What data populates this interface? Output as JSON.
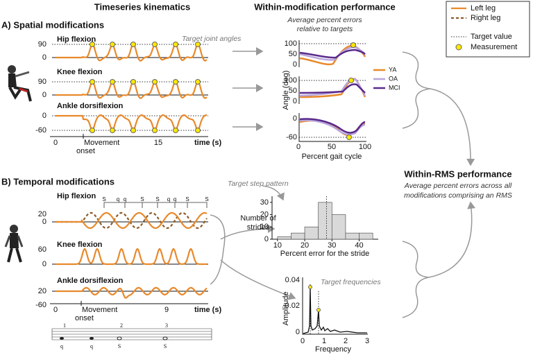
{
  "headers": [
    "Timeseries kinematics",
    "Within-modification performance"
  ],
  "subtitle": [
    "Average percent errors",
    "relative to targets"
  ],
  "legend": [
    "Left leg",
    "Right leg",
    "Target value",
    "Measurement"
  ],
  "panel_a": {
    "title": "A) Spatial modifications",
    "joints": [
      "Hip flexion",
      "Knee flexion",
      "Ankle dorsiflexion"
    ],
    "annotation": "Target joint angles",
    "ticks": [
      "90",
      "0",
      "90",
      "0",
      "0",
      "-60"
    ],
    "xticks": [
      "0",
      "15"
    ],
    "xlabel": "time (s)",
    "onset": [
      "Movement",
      "onset"
    ]
  },
  "gait": {
    "ylabel": "Angle (deg)",
    "xlabel": "Percent gait cycle",
    "xticks": [
      "0",
      "50",
      "100"
    ],
    "ticks": [
      "100",
      "50",
      "0",
      "100",
      "50",
      "0",
      "0",
      "-60"
    ],
    "groups": [
      "YA",
      "OA",
      "MCI"
    ]
  },
  "rms": {
    "title": "Within-RMS performance",
    "subtitle": [
      "Average percent errors across all",
      "modifications comprising an RMS"
    ]
  },
  "panel_b": {
    "title": "B) Temporal modifications",
    "joints": [
      "Hip flexion",
      "Knee flexion",
      "Ankle dorsiflexion"
    ],
    "annotation": "Target step pattern",
    "steps": [
      "S",
      "q",
      "q",
      "S",
      "S",
      "q",
      "q",
      "S",
      "S"
    ],
    "ticks": [
      "20",
      "0",
      "60",
      "0",
      "20",
      "-60"
    ],
    "xticks": [
      "0",
      "9"
    ],
    "xlabel": "time (s)",
    "onset": [
      "Movement",
      "onset"
    ]
  },
  "histogram": {
    "type": "histogram",
    "bins": [
      10,
      15,
      20,
      25,
      30,
      35,
      40,
      45
    ],
    "counts": [
      2,
      5,
      10,
      30,
      20,
      5,
      5
    ],
    "color": "#d9d9d9",
    "xlim": [
      8,
      47
    ],
    "ylim": [
      0,
      35
    ],
    "xticks": [
      10,
      20,
      30,
      40
    ],
    "yticks": [
      0,
      10,
      20,
      30
    ],
    "target": 28,
    "ylabel": [
      "Number of",
      "strides"
    ],
    "xlabel": "Percent error for the stride"
  },
  "spectrum": {
    "ylabel": "Amplitude",
    "xlabel": "Frequency",
    "yticks": [
      "0.04",
      "0.02",
      "0"
    ],
    "xticks": [
      "0",
      "1",
      "2",
      "3"
    ],
    "annotation": "Target frequencies"
  },
  "music": {
    "measures": [
      "1",
      "2",
      "3"
    ],
    "notes": [
      "q",
      "q",
      "S",
      "S"
    ]
  }
}
